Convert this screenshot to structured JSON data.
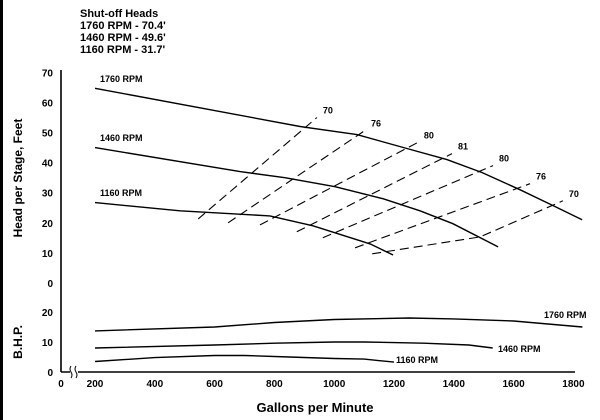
{
  "annotation": {
    "title": "Shut-off Heads",
    "lines": [
      "1760 RPM - 70.4'",
      "1460 RPM - 49.6'",
      "1160 RPM - 31.7'"
    ]
  },
  "chart_data": {
    "type": "line",
    "title": "",
    "xlabel": "Gallons per Minute",
    "xlim": [
      200,
      1800
    ],
    "xticks": [
      "0",
      "200",
      "400",
      "600",
      "800",
      "1000",
      "1200",
      "1400",
      "1600",
      "1800"
    ],
    "axis_break": true,
    "head_panel": {
      "ylabel": "Head per Stage, Feet",
      "ylim": [
        0,
        70
      ],
      "yticks": [
        "70",
        "60",
        "50",
        "40",
        "30",
        "20",
        "10",
        "0"
      ],
      "series": [
        {
          "name": "1760 RPM",
          "points": [
            [
              200,
              64.7
            ],
            [
              886,
              52
            ],
            [
              1076,
              49.3
            ],
            [
              1243,
              44.7
            ],
            [
              1377,
              41
            ],
            [
              1494,
              36.7
            ],
            [
              1621,
              31
            ],
            [
              1732,
              25.7
            ],
            [
              1829,
              21
            ]
          ]
        },
        {
          "name": "1460 RPM",
          "points": [
            [
              200,
              45
            ],
            [
              685,
              37
            ],
            [
              835,
              35
            ],
            [
              1003,
              32
            ],
            [
              1163,
              28
            ],
            [
              1287,
              24
            ],
            [
              1397,
              19.7
            ],
            [
              1548,
              12
            ]
          ]
        },
        {
          "name": "1160 RPM",
          "points": [
            [
              200,
              26.7
            ],
            [
              484,
              24
            ],
            [
              785,
              22.3
            ],
            [
              929,
              19
            ],
            [
              1120,
              13
            ],
            [
              1197,
              9.3
            ]
          ]
        }
      ],
      "efficiency_lines": [
        {
          "label": "70",
          "points": [
            [
              545,
              21.3
            ],
            [
              942,
              55
            ]
          ]
        },
        {
          "label": "76",
          "points": [
            [
              645,
              20
            ],
            [
              1103,
              50.7
            ]
          ]
        },
        {
          "label": "80",
          "points": [
            [
              752,
              19.3
            ],
            [
              1280,
              46.7
            ]
          ]
        },
        {
          "label": "81",
          "points": [
            [
              875,
              17
            ],
            [
              1394,
              43
            ]
          ]
        },
        {
          "label": "80",
          "points": [
            [
              962,
              15
            ],
            [
              1531,
              39
            ]
          ]
        },
        {
          "label": "76",
          "points": [
            [
              1070,
              11.7
            ],
            [
              1655,
              33
            ]
          ]
        },
        {
          "label": "70",
          "points": [
            [
              1127,
              9.7
            ],
            [
              1488,
              15.3
            ],
            [
              1765,
              27.3
            ]
          ]
        }
      ]
    },
    "bhp_panel": {
      "ylabel": "B.H.P.",
      "ylim": [
        0,
        20
      ],
      "yticks": [
        "20",
        "10",
        "0"
      ],
      "series": [
        {
          "name": "1760 RPM",
          "points": [
            [
              200,
              13.7
            ],
            [
              600,
              15
            ],
            [
              800,
              16.5
            ],
            [
              1000,
              17.5
            ],
            [
              1250,
              18
            ],
            [
              1400,
              17.7
            ],
            [
              1600,
              17
            ],
            [
              1830,
              15
            ]
          ]
        },
        {
          "name": "1460 RPM",
          "points": [
            [
              200,
              8
            ],
            [
              600,
              9
            ],
            [
              800,
              9.6
            ],
            [
              1000,
              10
            ],
            [
              1100,
              10
            ],
            [
              1300,
              9.6
            ],
            [
              1450,
              9
            ],
            [
              1530,
              8
            ]
          ]
        },
        {
          "name": "1160 RPM",
          "points": [
            [
              200,
              3.5
            ],
            [
              400,
              4.8
            ],
            [
              600,
              5.5
            ],
            [
              700,
              5.5
            ],
            [
              850,
              5
            ],
            [
              1000,
              4.5
            ],
            [
              1100,
              4.3
            ],
            [
              1200,
              3.3
            ]
          ]
        }
      ]
    }
  }
}
